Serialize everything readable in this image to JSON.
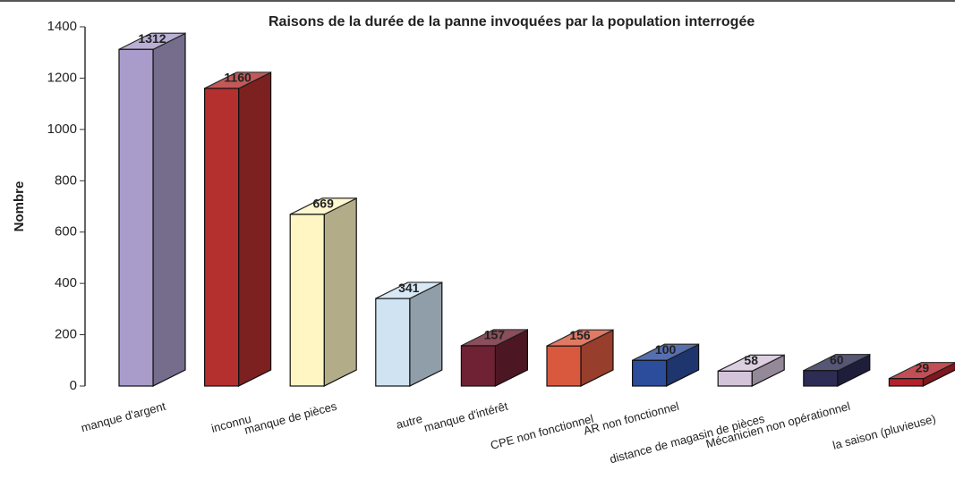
{
  "chart_data": {
    "type": "bar3d",
    "title": "Raisons de la durée de la panne invoquées par la population interrogée",
    "y_label": "Nombre",
    "categories": [
      "manque d'argent",
      "inconnu",
      "manque de pièces",
      "autre",
      "manque d'intérêt",
      "CPE non fonctionnel",
      "AR non fonctionnel",
      "distance de magasin de pièces",
      "Mécanicien non opérationnel",
      "la saison (pluvieuse)"
    ],
    "values": [
      1312,
      1160,
      669,
      341,
      157,
      156,
      100,
      58,
      60,
      29
    ],
    "colors": [
      "#a99ccb",
      "#b3302f",
      "#fff6c4",
      "#cfe3f2",
      "#6e2233",
      "#d9593f",
      "#2c4c9c",
      "#d4c4da",
      "#2c2c55",
      "#b3232b"
    ],
    "ylim": [
      0,
      1400
    ],
    "yticks": [
      0,
      200,
      400,
      600,
      800,
      1000,
      1200,
      1400
    ],
    "grid": false
  }
}
